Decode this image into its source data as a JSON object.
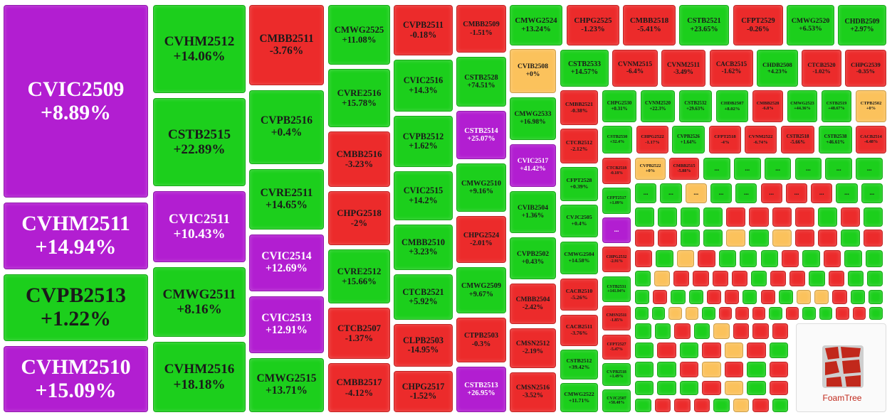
{
  "chart_data": {
    "type": "treemap",
    "more_label": "...",
    "logo_text": "FoamTree",
    "palette": [
      "#1ccf1c",
      "#ec2b2b",
      "#fbc25c",
      "#b21ed1"
    ],
    "tiles": [
      {
        "name": "CVIC2509",
        "value": 8.89,
        "value_label": "+8.89%",
        "color": "#b21ed1"
      },
      {
        "name": "CVHM2511",
        "value": 14.94,
        "value_label": "+14.94%",
        "color": "#b21ed1"
      },
      {
        "name": "CVPB2513",
        "value": 1.22,
        "value_label": "+1.22%",
        "color": "#1ccf1c"
      },
      {
        "name": "CVHM2510",
        "value": 15.09,
        "value_label": "+15.09%",
        "color": "#b21ed1"
      },
      {
        "name": "CVHM2512",
        "value": 14.06,
        "value_label": "+14.06%",
        "color": "#1ccf1c"
      },
      {
        "name": "CSTB2515",
        "value": 22.89,
        "value_label": "+22.89%",
        "color": "#1ccf1c"
      },
      {
        "name": "CVIC2511",
        "value": 10.43,
        "value_label": "+10.43%",
        "color": "#b21ed1"
      },
      {
        "name": "CMWG2511",
        "value": 8.16,
        "value_label": "+8.16%",
        "color": "#1ccf1c"
      },
      {
        "name": "CVHM2516",
        "value": 18.18,
        "value_label": "+18.18%",
        "color": "#1ccf1c"
      },
      {
        "name": "CMBB2511",
        "value": -3.76,
        "value_label": "-3.76%",
        "color": "#ec2b2b"
      },
      {
        "name": "CVPB2516",
        "value": 0.4,
        "value_label": "+0.4%",
        "color": "#1ccf1c"
      },
      {
        "name": "CVRE2511",
        "value": 14.65,
        "value_label": "+14.65%",
        "color": "#1ccf1c"
      },
      {
        "name": "CVIC2514",
        "value": 12.69,
        "value_label": "+12.69%",
        "color": "#b21ed1"
      },
      {
        "name": "CVIC2513",
        "value": 12.91,
        "value_label": "+12.91%",
        "color": "#b21ed1"
      },
      {
        "name": "CMWG2515",
        "value": 13.71,
        "value_label": "+13.71%",
        "color": "#1ccf1c"
      },
      {
        "name": "CMWG2525",
        "value": 11.08,
        "value_label": "+11.08%",
        "color": "#1ccf1c"
      },
      {
        "name": "CVRE2516",
        "value": 15.78,
        "value_label": "+15.78%",
        "color": "#1ccf1c"
      },
      {
        "name": "CMBB2516",
        "value": -3.23,
        "value_label": "-3.23%",
        "color": "#ec2b2b"
      },
      {
        "name": "CHPG2518",
        "value": -2,
        "value_label": "-2%",
        "color": "#ec2b2b"
      },
      {
        "name": "CVRE2512",
        "value": 15.66,
        "value_label": "+15.66%",
        "color": "#1ccf1c"
      },
      {
        "name": "CTCB2507",
        "value": -1.37,
        "value_label": "-1.37%",
        "color": "#ec2b2b"
      },
      {
        "name": "CMBB2517",
        "value": -4.12,
        "value_label": "-4.12%",
        "color": "#ec2b2b"
      },
      {
        "name": "CVPB2511",
        "value": -0.18,
        "value_label": "-0.18%",
        "color": "#ec2b2b"
      },
      {
        "name": "CVIC2516",
        "value": 14.3,
        "value_label": "+14.3%",
        "color": "#1ccf1c"
      },
      {
        "name": "CVPB2512",
        "value": 1.62,
        "value_label": "+1.62%",
        "color": "#1ccf1c"
      },
      {
        "name": "CVIC2515",
        "value": 14.2,
        "value_label": "+14.2%",
        "color": "#1ccf1c"
      },
      {
        "name": "CMBB2510",
        "value": 3.23,
        "value_label": "+3.23%",
        "color": "#1ccf1c"
      },
      {
        "name": "CTCB2521",
        "value": 5.92,
        "value_label": "+5.92%",
        "color": "#1ccf1c"
      },
      {
        "name": "CLPB2503",
        "value": -14.95,
        "value_label": "-14.95%",
        "color": "#ec2b2b"
      },
      {
        "name": "CHPG2517",
        "value": -1.52,
        "value_label": "-1.52%",
        "color": "#ec2b2b"
      },
      {
        "name": "CMBB2509",
        "value": -1.51,
        "value_label": "-1.51%",
        "color": "#ec2b2b"
      },
      {
        "name": "CSTB2528",
        "value": 74.51,
        "value_label": "+74.51%",
        "color": "#1ccf1c"
      },
      {
        "name": "CSTB2514",
        "value": 25.07,
        "value_label": "+25.07%",
        "color": "#b21ed1"
      },
      {
        "name": "CMWG2510",
        "value": 9.16,
        "value_label": "+9.16%",
        "color": "#1ccf1c"
      },
      {
        "name": "CHPG2524",
        "value": -2.01,
        "value_label": "-2.01%",
        "color": "#ec2b2b"
      },
      {
        "name": "CMWG2509",
        "value": 9.67,
        "value_label": "+9.67%",
        "color": "#1ccf1c"
      },
      {
        "name": "CTPB2503",
        "value": -0.3,
        "value_label": "-0.3%",
        "color": "#ec2b2b"
      },
      {
        "name": "CSTB2513",
        "value": 26.95,
        "value_label": "+26.95%",
        "color": "#b21ed1"
      },
      {
        "name": "CMWG2524",
        "value": 13.24,
        "value_label": "+13.24%",
        "color": "#1ccf1c"
      },
      {
        "name": "CHPG2525",
        "value": -1.23,
        "value_label": "-1.23%",
        "color": "#ec2b2b"
      },
      {
        "name": "CMBB2518",
        "value": -5.41,
        "value_label": "-5.41%",
        "color": "#ec2b2b"
      },
      {
        "name": "CSTB2521",
        "value": 23.65,
        "value_label": "+23.65%",
        "color": "#1ccf1c"
      },
      {
        "name": "CFPT2529",
        "value": -0.26,
        "value_label": "-0.26%",
        "color": "#ec2b2b"
      },
      {
        "name": "CMWG2520",
        "value": 6.53,
        "value_label": "+6.53%",
        "color": "#1ccf1c"
      },
      {
        "name": "CHDB2509",
        "value": 2.97,
        "value_label": "+2.97%",
        "color": "#1ccf1c"
      },
      {
        "name": "CVIB2508",
        "value": 0,
        "value_label": "+0%",
        "color": "#fbc25c"
      },
      {
        "name": "CMWG2533",
        "value": 16.98,
        "value_label": "+16.98%",
        "color": "#1ccf1c"
      },
      {
        "name": "CVIC2517",
        "value": 41.42,
        "value_label": "+41.42%",
        "color": "#b21ed1"
      },
      {
        "name": "CVIB2504",
        "value": 1.36,
        "value_label": "+1.36%",
        "color": "#1ccf1c"
      },
      {
        "name": "CVPB2502",
        "value": 0.43,
        "value_label": "+0.43%",
        "color": "#1ccf1c"
      },
      {
        "name": "CMBB2504",
        "value": -2.42,
        "value_label": "-2.42%",
        "color": "#ec2b2b"
      },
      {
        "name": "CMSN2512",
        "value": -2.19,
        "value_label": "-2.19%",
        "color": "#ec2b2b"
      },
      {
        "name": "CMSN2516",
        "value": -3.52,
        "value_label": "-3.52%",
        "color": "#ec2b2b"
      },
      {
        "name": "CSTB2533",
        "value": 14.57,
        "value_label": "+14.57%",
        "color": "#1ccf1c"
      },
      {
        "name": "CVNM2515",
        "value": -6.4,
        "value_label": "-6.4%",
        "color": "#ec2b2b"
      },
      {
        "name": "CVNM2511",
        "value": -3.49,
        "value_label": "-3.49%",
        "color": "#ec2b2b"
      },
      {
        "name": "CACB2515",
        "value": -1.62,
        "value_label": "-1.62%",
        "color": "#ec2b2b"
      },
      {
        "name": "CHDB2508",
        "value": 4.23,
        "value_label": "+4.23%",
        "color": "#1ccf1c"
      },
      {
        "name": "CTCB2520",
        "value": -1.02,
        "value_label": "-1.02%",
        "color": "#ec2b2b"
      },
      {
        "name": "CHPG2539",
        "value": -0.35,
        "value_label": "-0.35%",
        "color": "#ec2b2b"
      },
      {
        "name": "CMBB2521",
        "value": -0.38,
        "value_label": "-0.38%",
        "color": "#ec2b2b"
      },
      {
        "name": "CTCB2512",
        "value": -2.12,
        "value_label": "-2.12%",
        "color": "#ec2b2b"
      },
      {
        "name": "CFPT2528",
        "value": 0.39,
        "value_label": "+0.39%",
        "color": "#1ccf1c"
      },
      {
        "name": "CVJC2505",
        "value": 0.4,
        "value_label": "+0.4%",
        "color": "#1ccf1c"
      },
      {
        "name": "CMWG2504",
        "value": 14.58,
        "value_label": "+14.58%",
        "color": "#1ccf1c"
      },
      {
        "name": "CACB2510",
        "value": -5.26,
        "value_label": "-5.26%",
        "color": "#ec2b2b"
      },
      {
        "name": "CACB2511",
        "value": -3.76,
        "value_label": "-3.76%",
        "color": "#ec2b2b"
      },
      {
        "name": "CSTB2512",
        "value": 39.42,
        "value_label": "+39.42%",
        "color": "#1ccf1c"
      },
      {
        "name": "CMWG2522",
        "value": 11.71,
        "value_label": "+11.71%",
        "color": "#1ccf1c"
      },
      {
        "name": "CHPG2530",
        "value": 0.31,
        "value_label": "+0.31%",
        "color": "#1ccf1c"
      },
      {
        "name": "CVNM2520",
        "value": 22.3,
        "value_label": "+22.3%",
        "color": "#1ccf1c"
      },
      {
        "name": "CSTB2532",
        "value": 29.63,
        "value_label": "+29.63%",
        "color": "#1ccf1c"
      },
      {
        "name": "CHDB2507",
        "value": 8.02,
        "value_label": "+8.02%",
        "color": "#1ccf1c"
      },
      {
        "name": "CMBB2528",
        "value": -6.8,
        "value_label": "-6.8%",
        "color": "#ec2b2b"
      },
      {
        "name": "CMWG2523",
        "value": 44.36,
        "value_label": "+44.36%",
        "color": "#1ccf1c"
      },
      {
        "name": "CSTB2519",
        "value": 48.67,
        "value_label": "+48.67%",
        "color": "#1ccf1c"
      },
      {
        "name": "CTPB2502",
        "value": 0,
        "value_label": "+0%",
        "color": "#fbc25c"
      },
      {
        "name": "CSTB2530",
        "value": 32.4,
        "value_label": "+32.4%",
        "color": "#1ccf1c"
      },
      {
        "name": "CHPG2522",
        "value": -1.17,
        "value_label": "-1.17%",
        "color": "#ec2b2b"
      },
      {
        "name": "CVPB2526",
        "value": 1.64,
        "value_label": "+1.64%",
        "color": "#1ccf1c"
      },
      {
        "name": "CFPT2518",
        "value": -4,
        "value_label": "-4%",
        "color": "#ec2b2b"
      },
      {
        "name": "CVNM2522",
        "value": -6.74,
        "value_label": "-6.74%",
        "color": "#ec2b2b"
      },
      {
        "name": "CSTB2518",
        "value": -5.66,
        "value_label": "-5.66%",
        "color": "#ec2b2b"
      },
      {
        "name": "CSTB2538",
        "value": 46.61,
        "value_label": "+46.61%",
        "color": "#1ccf1c"
      },
      {
        "name": "CACB2514",
        "value": -4.48,
        "value_label": "-4.48%",
        "color": "#ec2b2b"
      },
      {
        "name": "CTCB2518",
        "value": -0.18,
        "value_label": "-0.18%",
        "color": "#ec2b2b"
      },
      {
        "name": "CFPT2517",
        "value": 1.09,
        "value_label": "+1.09%",
        "color": "#1ccf1c"
      },
      {
        "name": "CHPG2532",
        "value": -2.91,
        "value_label": "-2.91%",
        "color": "#ec2b2b"
      },
      {
        "name": "CSTB2531",
        "value": 141.94,
        "value_label": "+141.94%",
        "color": "#1ccf1c"
      },
      {
        "name": "CMSN2511",
        "value": -1.85,
        "value_label": "-1.85%",
        "color": "#ec2b2b"
      },
      {
        "name": "CFPT2527",
        "value": -5.47,
        "value_label": "-5.47%",
        "color": "#ec2b2b"
      },
      {
        "name": "CVPB2518",
        "value": 1.49,
        "value_label": "+1.49%",
        "color": "#1ccf1c"
      },
      {
        "name": "CVJC2507",
        "value": 58.48,
        "value_label": "+58.48%",
        "color": "#1ccf1c"
      },
      {
        "name": "CVPB2522",
        "value": 0,
        "value_label": "+0%",
        "color": "#fbc25c"
      },
      {
        "name": "CMBB2515",
        "value": -5.88,
        "value_label": "-5.88%",
        "color": "#ec2b2b"
      }
    ]
  }
}
